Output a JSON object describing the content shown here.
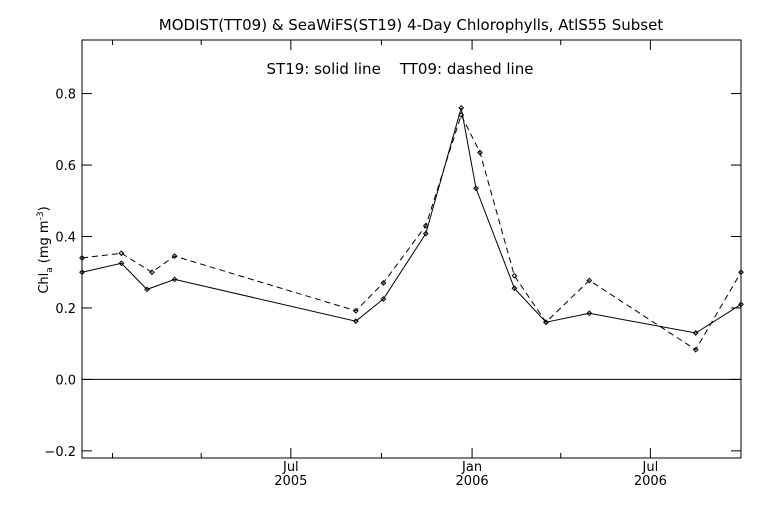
{
  "chart_data": {
    "type": "line",
    "title": "MODIST(TT09) & SeaWiFS(ST19) 4-Day Chlorophylls, AtlS55 Subset",
    "annotation": "ST19: solid line    TT09: dashed line",
    "ylabel": {
      "main": "Chl",
      "sub": "a",
      "unit": "(mg m",
      "exp": "-3",
      "close": ")"
    },
    "xlabel": "",
    "x_range": [
      "2004-12-01",
      "2006-10-01"
    ],
    "ylim": [
      -0.22,
      0.95
    ],
    "y_ticks": [
      -0.2,
      0.0,
      0.2,
      0.4,
      0.6,
      0.8
    ],
    "y_tick_labels": [
      "−0.2",
      "0.0",
      "0.2",
      "0.4",
      "0.6",
      "0.8"
    ],
    "x_major_ticks": [
      {
        "date": "2005-07-01",
        "label": "Jul",
        "sublabel": "2005"
      },
      {
        "date": "2006-01-01",
        "label": "Jan",
        "sublabel": "2006"
      },
      {
        "date": "2006-07-01",
        "label": "Jul",
        "sublabel": "2006"
      }
    ],
    "x_minor_ticks": [
      "2005-01-01",
      "2005-04-01",
      "2005-10-01",
      "2006-04-01"
    ],
    "zero_line": true,
    "grid": false,
    "series": [
      {
        "style": "solid",
        "color": "#000000",
        "points": [
          [
            "2004-12-01",
            0.3
          ],
          [
            "2005-01-10",
            0.325
          ],
          [
            "2005-02-05",
            0.252
          ],
          [
            "2005-03-05",
            0.28
          ],
          [
            "2005-09-05",
            0.163
          ],
          [
            "2005-10-03",
            0.225
          ],
          [
            "2005-11-15",
            0.408
          ],
          [
            "2005-12-21",
            0.76
          ],
          [
            "2006-01-05",
            0.535
          ],
          [
            "2006-02-13",
            0.255
          ],
          [
            "2006-03-17",
            0.16
          ],
          [
            "2006-04-30",
            0.185
          ],
          [
            "2006-08-16",
            0.13
          ],
          [
            "2006-10-01",
            0.21
          ]
        ]
      },
      {
        "style": "dashed",
        "color": "#000000",
        "points": [
          [
            "2004-12-01",
            0.34
          ],
          [
            "2005-01-10",
            0.353
          ],
          [
            "2005-02-10",
            0.3
          ],
          [
            "2005-03-05",
            0.345
          ],
          [
            "2005-09-05",
            0.192
          ],
          [
            "2005-10-03",
            0.27
          ],
          [
            "2005-11-15",
            0.43
          ],
          [
            "2005-12-21",
            0.74
          ],
          [
            "2006-01-09",
            0.635
          ],
          [
            "2006-02-13",
            0.29
          ],
          [
            "2006-03-17",
            0.16
          ],
          [
            "2006-04-30",
            0.277
          ],
          [
            "2006-08-16",
            0.083
          ],
          [
            "2006-10-01",
            0.3
          ]
        ]
      }
    ]
  }
}
